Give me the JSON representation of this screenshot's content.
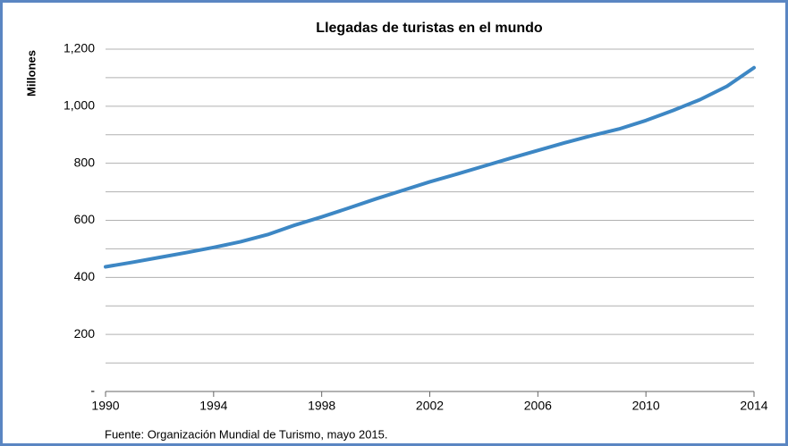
{
  "chart_data": {
    "type": "line",
    "title": "Llegadas de turistas en el mundo",
    "y_label": "Millones",
    "source": "Fuente: Organización Mundial de Turismo, mayo 2015.",
    "x": [
      1990,
      1991,
      1992,
      1993,
      1994,
      1995,
      1996,
      1997,
      1998,
      1999,
      2000,
      2001,
      2002,
      2003,
      2004,
      2005,
      2006,
      2007,
      2008,
      2009,
      2010,
      2011,
      2012,
      2013,
      2014
    ],
    "series": [
      {
        "name": "Llegadas",
        "color": "#3d87c4",
        "values": [
          437,
          453,
          470,
          487,
          505,
          525,
          550,
          583,
          612,
          643,
          675,
          705,
          735,
          762,
          790,
          818,
          845,
          872,
          897,
          920,
          950,
          985,
          1023,
          1070,
          1135
        ]
      }
    ],
    "xlim": [
      1990,
      2014
    ],
    "xticks": [
      1990,
      1994,
      1998,
      2002,
      2006,
      2010,
      2014
    ],
    "ylim": [
      0,
      1200
    ],
    "yticks": [
      {
        "value": 0,
        "label": "-"
      },
      200,
      400,
      600,
      800,
      {
        "value": 1000,
        "label": "1,000"
      },
      {
        "value": 1200,
        "label": "1,200"
      }
    ],
    "y_minor_ticks": [
      100,
      300,
      500,
      700,
      900,
      1100
    ],
    "grid": true
  }
}
